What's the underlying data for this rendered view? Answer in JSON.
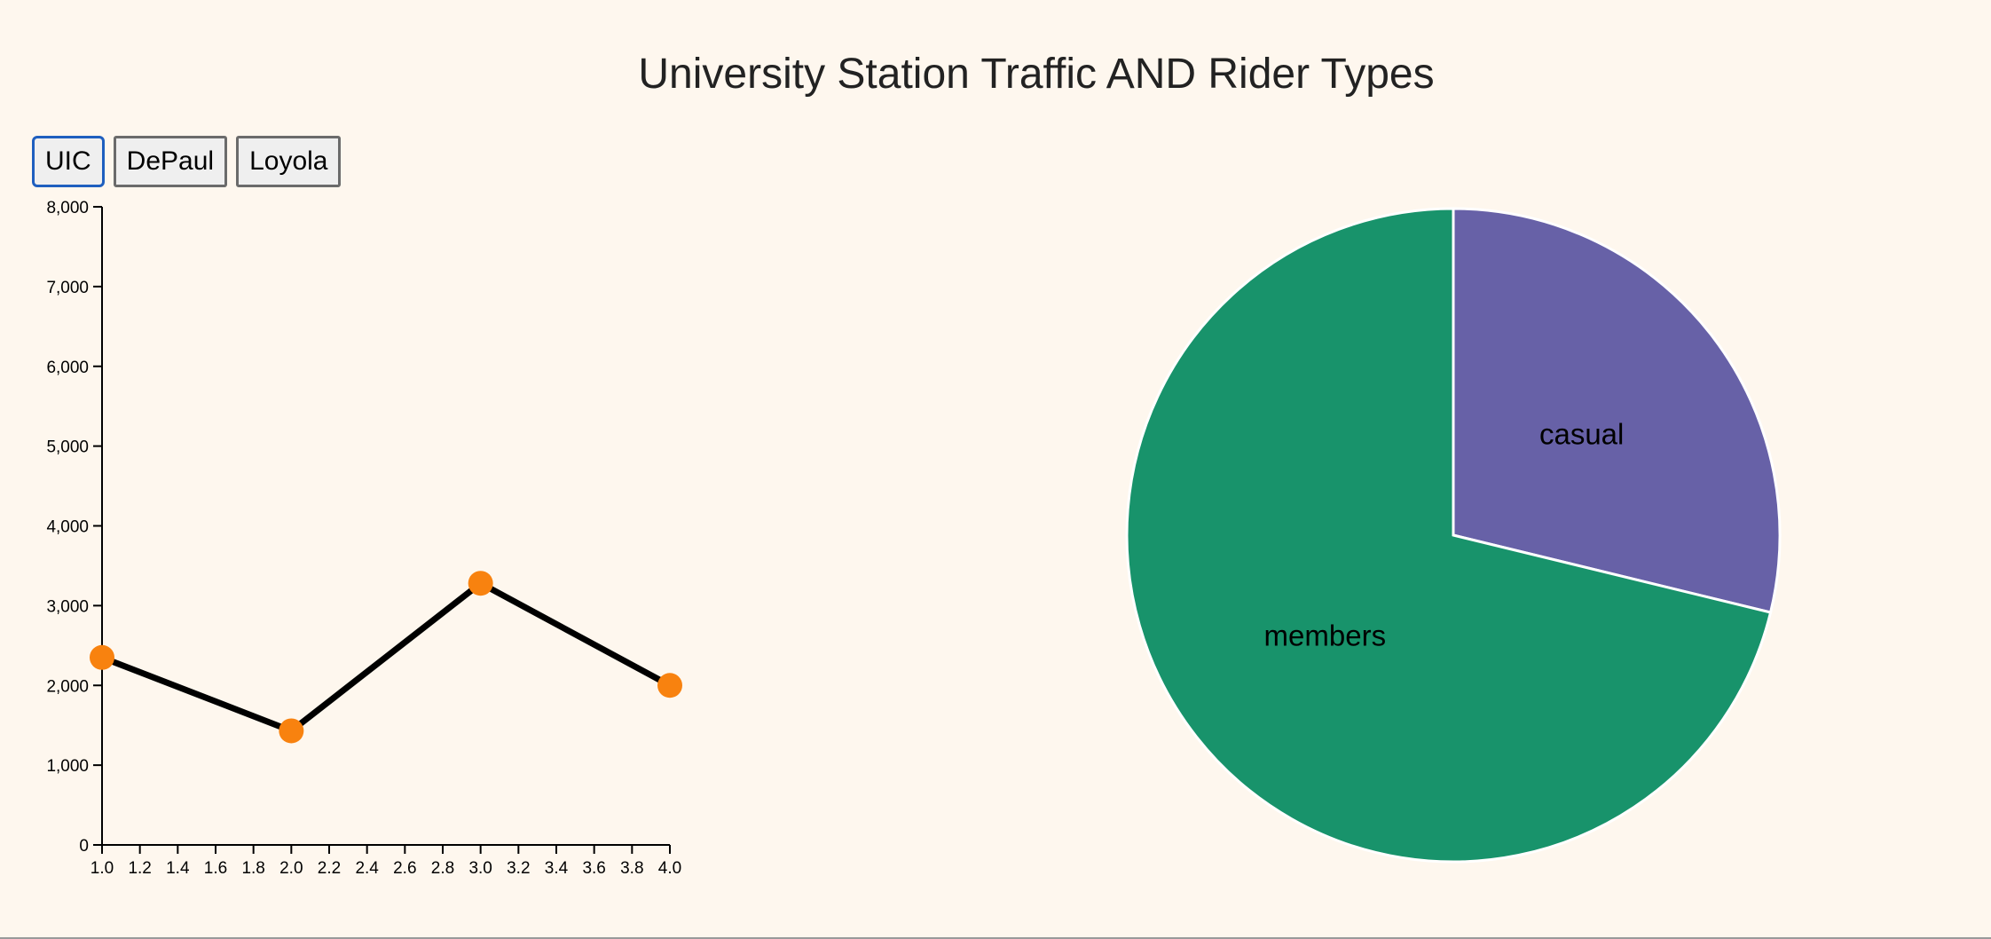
{
  "header": {
    "title": "University Station Traffic AND Rider Types"
  },
  "station_buttons": [
    {
      "label": "UIC",
      "active": true
    },
    {
      "label": "DePaul",
      "active": false
    },
    {
      "label": "Loyola",
      "active": false
    }
  ],
  "colors": {
    "background": "#fef7ee",
    "line": "#000000",
    "point": "#f8820f",
    "members": "#18936b",
    "casual": "#6761a7",
    "active_button_border": "#1f5fbf"
  },
  "chart_data": [
    {
      "type": "line",
      "title": "",
      "xlabel": "",
      "ylabel": "",
      "x": [
        1.0,
        2.0,
        3.0,
        4.0
      ],
      "series": [
        {
          "values": [
            2350,
            1430,
            3280,
            2000
          ]
        }
      ],
      "xlim": [
        1.0,
        4.0
      ],
      "ylim": [
        0,
        8000
      ],
      "x_ticks": [
        "1.0",
        "1.2",
        "1.4",
        "1.6",
        "1.8",
        "2.0",
        "2.2",
        "2.4",
        "2.6",
        "2.8",
        "3.0",
        "3.2",
        "3.4",
        "3.6",
        "3.8",
        "4.0"
      ],
      "y_ticks": [
        "0",
        "1,000",
        "2,000",
        "3,000",
        "4,000",
        "5,000",
        "6,000",
        "7,000",
        "8,000"
      ],
      "grid": false
    },
    {
      "type": "pie",
      "title": "",
      "slices": [
        {
          "label": "casual",
          "value": 28.8
        },
        {
          "label": "members",
          "value": 71.2
        }
      ]
    }
  ]
}
